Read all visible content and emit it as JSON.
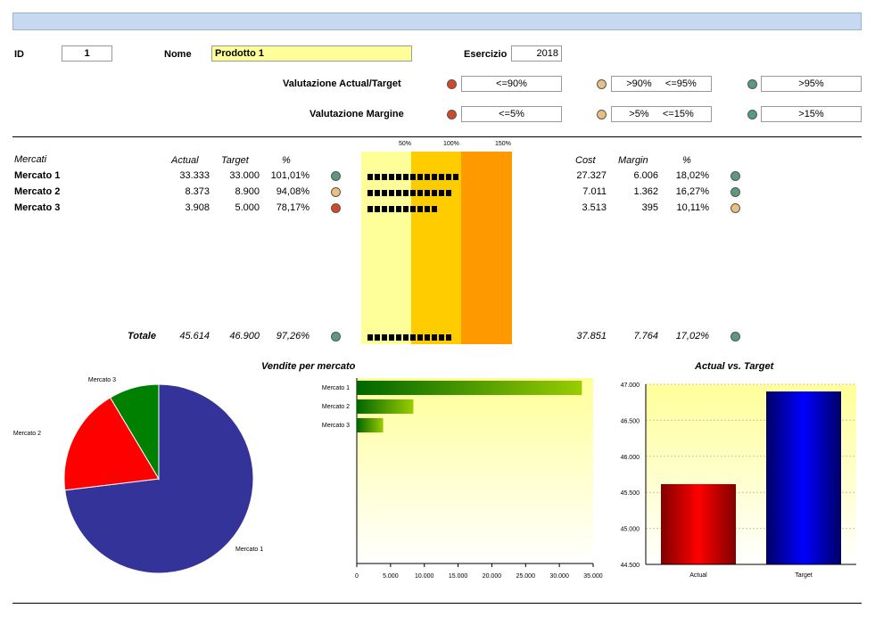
{
  "header": {
    "id_label": "ID",
    "id_value": "1",
    "nome_label": "Nome",
    "nome_value": "Prodotto 1",
    "esercizio_label": "Esercizio",
    "esercizio_value": "2018"
  },
  "valutazione": {
    "actual_label": "Valutazione Actual/Target",
    "actual_ranges": [
      "<=90%",
      ">90%     <=95%",
      ">95%"
    ],
    "margin_label": "Valutazione Margine",
    "margin_ranges": [
      "<=5%",
      ">5%     <=15%",
      ">15%"
    ]
  },
  "table": {
    "headers": {
      "mercati": "Mercati",
      "actual": "Actual",
      "target": "Target",
      "pct": "%",
      "cost": "Cost",
      "margin": "Margin",
      "mpct": "%"
    },
    "scale": [
      "50%",
      "100%",
      "150%"
    ],
    "rows": [
      {
        "name": "Mercato 1",
        "actual": "33.333",
        "target": "33.000",
        "pct": "101,01%",
        "status": "green",
        "squares": 13,
        "cost": "27.327",
        "margin": "6.006",
        "mpct": "18,02%",
        "mstatus": "green"
      },
      {
        "name": "Mercato 2",
        "actual": "8.373",
        "target": "8.900",
        "pct": "94,08%",
        "status": "amber",
        "squares": 12,
        "cost": "7.011",
        "margin": "1.362",
        "mpct": "16,27%",
        "mstatus": "green"
      },
      {
        "name": "Mercato 3",
        "actual": "3.908",
        "target": "5.000",
        "pct": "78,17%",
        "status": "red",
        "squares": 10,
        "cost": "3.513",
        "margin": "395",
        "mpct": "10,11%",
        "mstatus": "amber"
      }
    ],
    "total": {
      "label": "Totale",
      "actual": "45.614",
      "target": "46.900",
      "pct": "97,26%",
      "status": "green",
      "squares": 12,
      "cost": "37.851",
      "margin": "7.764",
      "mpct": "17,02%",
      "mstatus": "green"
    }
  },
  "chart_data": [
    {
      "type": "pie",
      "title": "",
      "categories": [
        "Mercato 1",
        "Mercato 2",
        "Mercato 3"
      ],
      "values": [
        33333,
        8373,
        3908
      ],
      "colors": [
        "#333399",
        "#ff0000",
        "#008000"
      ]
    },
    {
      "type": "bar",
      "title": "Vendite per mercato",
      "orientation": "horizontal",
      "categories": [
        "Mercato 1",
        "Mercato 2",
        "Mercato 3"
      ],
      "values": [
        33333,
        8373,
        3908
      ],
      "xlim": [
        0,
        35000
      ],
      "ticks": [
        "0",
        "5.000",
        "10.000",
        "15.000",
        "20.000",
        "25.000",
        "30.000",
        "35.000"
      ]
    },
    {
      "type": "bar",
      "title": "Actual vs. Target",
      "categories": [
        "Actual",
        "Target"
      ],
      "values": [
        45614,
        46900
      ],
      "ylim": [
        44500,
        47000
      ],
      "ticks": [
        "44.500",
        "45.000",
        "45.500",
        "46.000",
        "46.500",
        "47.000"
      ],
      "colors": [
        "#ff0000",
        "#0000cc"
      ],
      "grid": true
    }
  ]
}
